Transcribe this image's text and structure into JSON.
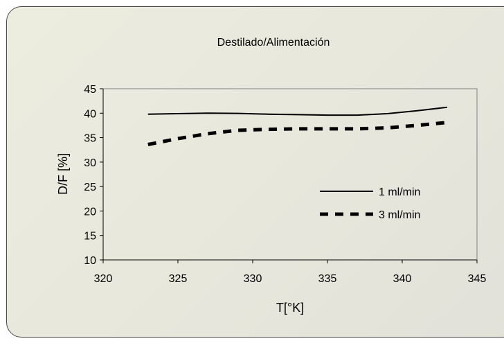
{
  "chart_data": {
    "type": "line",
    "title": "Destilado/Alimentación",
    "xlabel": "T[°K]",
    "ylabel": "D/F [%]",
    "xlim": [
      320,
      345
    ],
    "ylim": [
      10,
      45
    ],
    "xticks": [
      320,
      325,
      330,
      335,
      340,
      345
    ],
    "yticks": [
      10,
      15,
      20,
      25,
      30,
      35,
      40,
      45
    ],
    "grid": false,
    "legend_position": "right",
    "series": [
      {
        "name": "1 ml/min",
        "style": "solid",
        "x": [
          323,
          325,
          327,
          329,
          331,
          333,
          335,
          337,
          339,
          341,
          343
        ],
        "y": [
          39.8,
          39.9,
          40.0,
          39.95,
          39.8,
          39.7,
          39.6,
          39.6,
          39.9,
          40.5,
          41.2
        ]
      },
      {
        "name": "3 ml/min",
        "style": "dashed",
        "x": [
          323,
          325,
          327,
          329,
          331,
          333,
          335,
          337,
          339,
          341,
          343
        ],
        "y": [
          33.6,
          34.8,
          35.8,
          36.5,
          36.7,
          36.8,
          36.8,
          36.8,
          37.0,
          37.5,
          38.1
        ]
      }
    ]
  }
}
